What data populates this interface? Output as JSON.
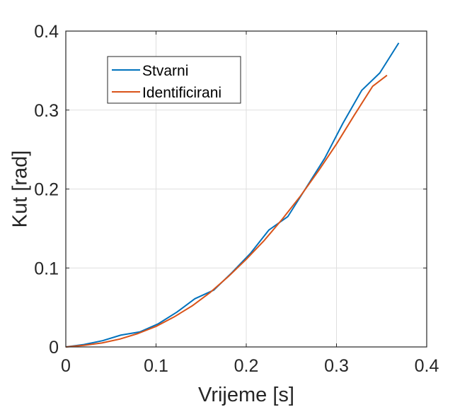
{
  "chart_data": {
    "type": "line",
    "xlabel": "Vrijeme [s]",
    "ylabel": "Kut [rad]",
    "xlim": [
      0,
      0.4
    ],
    "ylim": [
      0,
      0.4
    ],
    "xticks": [
      0,
      0.1,
      0.2,
      0.3,
      0.4
    ],
    "yticks": [
      0,
      0.1,
      0.2,
      0.3,
      0.4
    ],
    "xtick_labels": [
      "0",
      "0.1",
      "0.2",
      "0.3",
      "0.4"
    ],
    "ytick_labels": [
      "0",
      "0.1",
      "0.2",
      "0.3",
      "0.4"
    ],
    "grid": true,
    "legend_position": "top-left",
    "series": [
      {
        "name": "Stvarni",
        "color": "#0072BD",
        "x": [
          0,
          0.02,
          0.041,
          0.061,
          0.082,
          0.102,
          0.123,
          0.143,
          0.164,
          0.184,
          0.205,
          0.225,
          0.246,
          0.266,
          0.287,
          0.307,
          0.328,
          0.348,
          0.369
        ],
        "y": [
          0,
          0.003,
          0.008,
          0.015,
          0.019,
          0.029,
          0.044,
          0.061,
          0.072,
          0.094,
          0.119,
          0.148,
          0.165,
          0.201,
          0.239,
          0.283,
          0.325,
          0.347,
          0.385
        ]
      },
      {
        "name": "Identificirani",
        "color": "#D95319",
        "x": [
          0,
          0.02,
          0.04,
          0.06,
          0.08,
          0.1,
          0.12,
          0.14,
          0.16,
          0.18,
          0.2,
          0.22,
          0.24,
          0.26,
          0.28,
          0.3,
          0.32,
          0.34,
          0.356
        ],
        "y": [
          0,
          0.002,
          0.005,
          0.01,
          0.017,
          0.026,
          0.038,
          0.052,
          0.069,
          0.089,
          0.111,
          0.135,
          0.162,
          0.191,
          0.223,
          0.257,
          0.294,
          0.33,
          0.344
        ]
      }
    ]
  }
}
